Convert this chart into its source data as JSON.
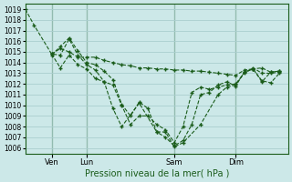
{
  "background_color": "#cce8e8",
  "grid_color": "#aacece",
  "line_color": "#1a5c1a",
  "ylim": [
    1005.5,
    1019.5
  ],
  "yticks": [
    1006,
    1007,
    1008,
    1009,
    1010,
    1011,
    1012,
    1013,
    1014,
    1015,
    1016,
    1017,
    1018,
    1019
  ],
  "xlabel": "Pression niveau de la mer( hPa )",
  "xlim": [
    0,
    30
  ],
  "vlines_x": [
    3,
    7,
    17,
    24
  ],
  "xtick_positions": [
    3,
    7,
    17,
    24
  ],
  "xtick_labels": [
    "Ven",
    "Lun",
    "Sam",
    "Dim"
  ],
  "lines": [
    {
      "x": [
        0,
        1,
        3,
        4,
        5,
        6,
        7,
        8,
        9,
        10,
        11,
        13,
        15,
        16,
        17,
        18,
        20,
        22,
        23,
        24,
        25,
        26,
        27,
        28,
        29
      ],
      "y": [
        1019.0,
        1017.5,
        1014.8,
        1014.7,
        1016.2,
        1014.7,
        1013.8,
        1013.3,
        1012.2,
        1009.7,
        1008.0,
        1010.2,
        1007.5,
        1007.5,
        1006.1,
        1006.5,
        1008.2,
        1011.0,
        1011.7,
        1011.9,
        1013.1,
        1013.4,
        1013.5,
        1013.1,
        1013.2
      ]
    },
    {
      "x": [
        3,
        4,
        5,
        6,
        7,
        8,
        9,
        10,
        11,
        12,
        13,
        14,
        15,
        16,
        17,
        18,
        19,
        20,
        21,
        22,
        23,
        24,
        25,
        26,
        27,
        28,
        29
      ],
      "y": [
        1014.8,
        1015.3,
        1015.0,
        1014.5,
        1014.5,
        1014.5,
        1014.2,
        1014.0,
        1013.8,
        1013.7,
        1013.5,
        1013.5,
        1013.4,
        1013.4,
        1013.3,
        1013.3,
        1013.2,
        1013.2,
        1013.1,
        1013.0,
        1012.9,
        1012.8,
        1013.3,
        1013.4,
        1012.2,
        1013.1,
        1013.2
      ]
    },
    {
      "x": [
        3,
        4,
        5,
        6,
        7,
        8,
        9,
        10,
        11,
        12,
        13,
        14,
        15,
        16,
        17,
        18,
        19,
        20,
        21,
        22,
        23,
        24,
        25,
        26,
        27,
        28,
        29
      ],
      "y": [
        1014.8,
        1013.5,
        1014.7,
        1013.8,
        1013.4,
        1012.5,
        1012.2,
        1011.9,
        1010.0,
        1008.2,
        1009.0,
        1009.0,
        1008.2,
        1007.7,
        1006.5,
        1008.0,
        1011.2,
        1011.7,
        1011.5,
        1011.7,
        1011.9,
        1012.0,
        1013.0,
        1013.5,
        1013.0,
        1013.0,
        1013.1
      ]
    },
    {
      "x": [
        3,
        4,
        5,
        6,
        7,
        8,
        9,
        10,
        11,
        12,
        13,
        14,
        15,
        16,
        17,
        18,
        19,
        20,
        21,
        22,
        23,
        24,
        25,
        26,
        27,
        28,
        29
      ],
      "y": [
        1014.7,
        1015.5,
        1016.3,
        1015.1,
        1014.0,
        1013.8,
        1013.2,
        1012.4,
        1010.1,
        1009.0,
        1010.3,
        1009.7,
        1007.5,
        1007.0,
        1006.2,
        1006.7,
        1008.2,
        1011.0,
        1011.2,
        1011.9,
        1012.2,
        1011.8,
        1013.1,
        1013.4,
        1012.3,
        1012.1,
        1013.0
      ]
    }
  ],
  "marker": "+",
  "markersize": 3.5,
  "linewidth": 0.8,
  "linestyle": "--"
}
